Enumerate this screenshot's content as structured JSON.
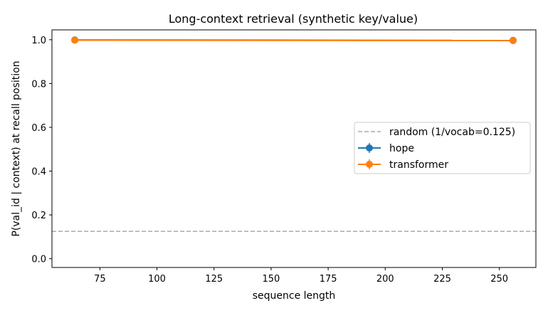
{
  "chart_data": {
    "type": "line",
    "title": "Long-context retrieval (synthetic key/value)",
    "xlabel": "sequence length",
    "ylabel": "P(val_id | context) at recall position",
    "xlim": [
      54,
      266
    ],
    "ylim": [
      -0.04,
      1.045
    ],
    "xticks": [
      75,
      100,
      125,
      150,
      175,
      200,
      225,
      250
    ],
    "yticks": [
      0.0,
      0.2,
      0.4,
      0.6,
      0.8,
      1.0
    ],
    "ytick_labels": [
      "0.0",
      "0.2",
      "0.4",
      "0.6",
      "0.8",
      "1.0"
    ],
    "grid": false,
    "legend_position": "center-right",
    "series": [
      {
        "name": "hope",
        "color": "#1f77b4",
        "x": [
          64,
          256
        ],
        "y": [
          0.999,
          0.997
        ],
        "yerr": [
          0.002,
          0.003
        ]
      },
      {
        "name": "transformer",
        "color": "#ff7f0e",
        "x": [
          64,
          256
        ],
        "y": [
          0.998,
          0.996
        ],
        "yerr": [
          0.002,
          0.003
        ]
      }
    ],
    "reference_lines": [
      {
        "name": "random (1/vocab=0.125)",
        "y": 0.125,
        "color": "#aaaaaa",
        "style": "dashed"
      }
    ]
  }
}
